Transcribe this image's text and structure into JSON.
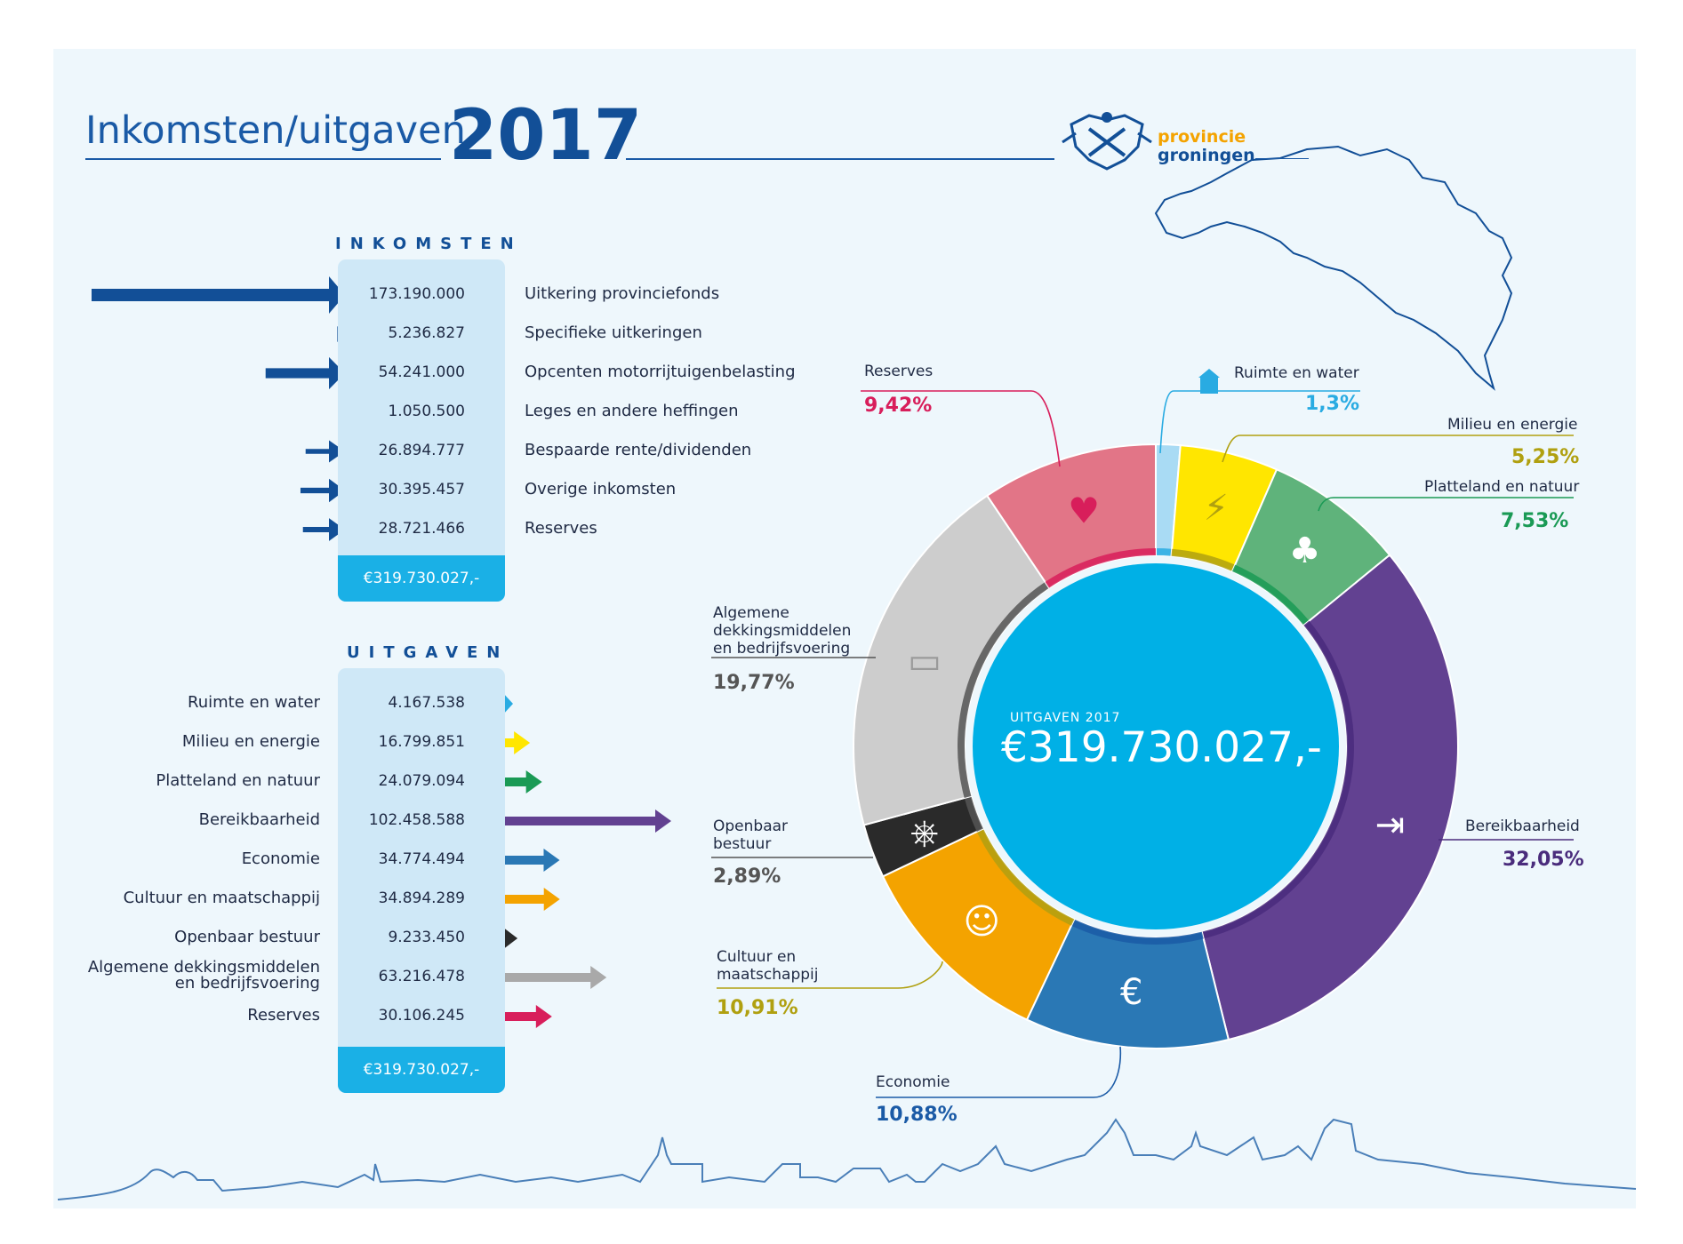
{
  "header": {
    "title": "Inkomsten/uitgaven",
    "year": "2017",
    "logo_line1": "provincie",
    "logo_line2": "groningen"
  },
  "inkomsten": {
    "section_title": "INKOMSTEN",
    "total": "€319.730.027,-",
    "arrow_color": "#124f97",
    "rows": [
      {
        "value": "173.190.000",
        "label": "Uitkering provinciefonds",
        "amount": 173190000
      },
      {
        "value": "5.236.827",
        "label": "Specifieke uitkeringen",
        "amount": 5236827
      },
      {
        "value": "54.241.000",
        "label": "Opcenten motorrijtuigenbelasting",
        "amount": 54241000
      },
      {
        "value": "1.050.500",
        "label": "Leges en andere heffingen",
        "amount": 1050500
      },
      {
        "value": "26.894.777",
        "label": "Bespaarde rente/dividenden",
        "amount": 26894777
      },
      {
        "value": "30.395.457",
        "label": "Overige inkomsten",
        "amount": 30395457
      },
      {
        "value": "28.721.466",
        "label": "Reserves",
        "amount": 28721466
      }
    ]
  },
  "uitgaven": {
    "section_title": "UITGAVEN",
    "total": "€319.730.027,-",
    "rows": [
      {
        "label": "Ruimte en water",
        "value": "4.167.538",
        "amount": 4167538,
        "color": "#29abe2"
      },
      {
        "label": "Milieu en energie",
        "value": "16.799.851",
        "amount": 16799851,
        "color": "#ffe600"
      },
      {
        "label": "Platteland en natuur",
        "value": "24.079.094",
        "amount": 24079094,
        "color": "#1a9a55"
      },
      {
        "label": "Bereikbaarheid",
        "value": "102.458.588",
        "amount": 102458588,
        "color": "#624191"
      },
      {
        "label": "Economie",
        "value": "34.774.494",
        "amount": 34774494,
        "color": "#2a78b5"
      },
      {
        "label": "Cultuur en maatschappij",
        "value": "34.894.289",
        "amount": 34894289,
        "color": "#f4a300"
      },
      {
        "label": "Openbaar bestuur",
        "value": "9.233.450",
        "amount": 9233450,
        "color": "#2a2a2a"
      },
      {
        "label": "Algemene dekkingsmiddelen en bedrijfsvoering",
        "value": "63.216.478",
        "amount": 63216478,
        "color": "#a9a9a9"
      },
      {
        "label": "Reserves",
        "value": "30.106.245",
        "amount": 30106245,
        "color": "#d81e5b"
      }
    ]
  },
  "chart_data": {
    "type": "pie",
    "center_caption": "UITGAVEN 2017",
    "center_value": "€319.730.027,-",
    "slices": [
      {
        "label": "Ruimte en water",
        "percent": 1.3,
        "percent_label": "1,3%",
        "color": "#a9dbf4",
        "label_color": "#29abe2"
      },
      {
        "label": "Milieu en energie",
        "percent": 5.25,
        "percent_label": "5,25%",
        "color": "#ffe600",
        "label_color": "#b0a010"
      },
      {
        "label": "Platteland en natuur",
        "percent": 7.53,
        "percent_label": "7,53%",
        "color": "#5fb37b",
        "label_color": "#1a9a55"
      },
      {
        "label": "Bereikbaarheid",
        "percent": 32.05,
        "percent_label": "32,05%",
        "color": "#624191",
        "label_color": "#4a2c7c"
      },
      {
        "label": "Economie",
        "percent": 10.88,
        "percent_label": "10,88%",
        "color": "#2a78b5",
        "label_color": "#1a5aa6"
      },
      {
        "label": "Cultuur en maatschappij",
        "percent": 10.91,
        "percent_label": "10,91%",
        "color": "#f4a300",
        "label_color": "#b0a010"
      },
      {
        "label": "Openbaar bestuur",
        "percent": 2.89,
        "percent_label": "2,89%",
        "color": "#2a2a2a",
        "label_color": "#555555"
      },
      {
        "label": "Algemene dekkingsmiddelen en bedrijfsvoering",
        "percent": 19.77,
        "percent_label": "19,77%",
        "color": "#cdcdcd",
        "label_color": "#555555"
      },
      {
        "label": "Reserves",
        "percent": 9.42,
        "percent_label": "9,42%",
        "color": "#e27587",
        "label_color": "#d81e5b"
      }
    ]
  },
  "annotations": {
    "reserves": {
      "label": "Reserves",
      "pct": "9,42%"
    },
    "ruimte": {
      "label": "Ruimte en water",
      "pct": "1,3%"
    },
    "milieu": {
      "label": "Milieu en energie",
      "pct": "5,25%"
    },
    "platteland": {
      "label": "Platteland en natuur",
      "pct": "7,53%"
    },
    "algemene": {
      "line1": "Algemene",
      "line2": "dekkingsmiddelen",
      "line3": "en bedrijfsvoering",
      "pct": "19,77%"
    },
    "openbaar": {
      "line1": "Openbaar",
      "line2": "bestuur",
      "pct": "2,89%"
    },
    "cultuur": {
      "line1": "Cultuur en",
      "line2": "maatschappij",
      "pct": "10,91%"
    },
    "economie": {
      "label": "Economie",
      "pct": "10,88%"
    },
    "bereikbaarheid": {
      "label": "Bereikbaarheid",
      "pct": "32,05%"
    }
  }
}
